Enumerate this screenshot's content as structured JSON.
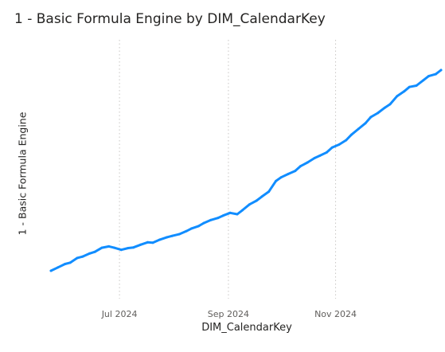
{
  "chart_data": {
    "type": "line",
    "title": "1 - Basic Formula Engine by DIM_CalendarKey",
    "xlabel": "DIM_CalendarKey",
    "ylabel": "1 - Basic Formula Engine",
    "x_ticks": [
      "Jul 2024",
      "Sep 2024",
      "Nov 2024"
    ],
    "x_start": "2024-05-23",
    "x_end": "2024-12-31",
    "grid": true,
    "series": [
      {
        "color": "#118dff",
        "points": [
          [
            "2024-05-23",
            0.0
          ],
          [
            "2024-05-27",
            1.0
          ],
          [
            "2024-05-31",
            2.0
          ],
          [
            "2024-06-03",
            2.4
          ],
          [
            "2024-06-07",
            3.8
          ],
          [
            "2024-06-10",
            4.2
          ],
          [
            "2024-06-14",
            5.1
          ],
          [
            "2024-06-17",
            5.6
          ],
          [
            "2024-06-21",
            6.8
          ],
          [
            "2024-06-25",
            7.2
          ],
          [
            "2024-06-28",
            6.8
          ],
          [
            "2024-07-02",
            6.2
          ],
          [
            "2024-07-06",
            6.7
          ],
          [
            "2024-07-09",
            6.9
          ],
          [
            "2024-07-13",
            7.7
          ],
          [
            "2024-07-17",
            8.4
          ],
          [
            "2024-07-20",
            8.3
          ],
          [
            "2024-07-24",
            9.2
          ],
          [
            "2024-07-28",
            9.9
          ],
          [
            "2024-07-31",
            10.3
          ],
          [
            "2024-08-04",
            10.8
          ],
          [
            "2024-08-08",
            11.7
          ],
          [
            "2024-08-11",
            12.5
          ],
          [
            "2024-08-15",
            13.2
          ],
          [
            "2024-08-18",
            14.1
          ],
          [
            "2024-08-22",
            15.0
          ],
          [
            "2024-08-26",
            15.6
          ],
          [
            "2024-08-29",
            16.3
          ],
          [
            "2024-09-02",
            17.1
          ],
          [
            "2024-09-06",
            16.7
          ],
          [
            "2024-09-09",
            17.9
          ],
          [
            "2024-09-13",
            19.6
          ],
          [
            "2024-09-17",
            20.7
          ],
          [
            "2024-09-20",
            21.9
          ],
          [
            "2024-09-24",
            23.4
          ],
          [
            "2024-09-28",
            26.5
          ],
          [
            "2024-10-01",
            27.6
          ],
          [
            "2024-10-05",
            28.6
          ],
          [
            "2024-10-09",
            29.5
          ],
          [
            "2024-10-12",
            30.9
          ],
          [
            "2024-10-16",
            32.0
          ],
          [
            "2024-10-20",
            33.3
          ],
          [
            "2024-10-23",
            34.0
          ],
          [
            "2024-10-27",
            35.0
          ],
          [
            "2024-10-30",
            36.4
          ],
          [
            "2024-11-03",
            37.3
          ],
          [
            "2024-11-07",
            38.6
          ],
          [
            "2024-11-10",
            40.2
          ],
          [
            "2024-11-14",
            41.9
          ],
          [
            "2024-11-18",
            43.6
          ],
          [
            "2024-11-21",
            45.4
          ],
          [
            "2024-11-25",
            46.6
          ],
          [
            "2024-11-29",
            48.2
          ],
          [
            "2024-12-02",
            49.2
          ],
          [
            "2024-12-06",
            51.6
          ],
          [
            "2024-12-10",
            53.0
          ],
          [
            "2024-12-13",
            54.3
          ],
          [
            "2024-12-17",
            54.7
          ],
          [
            "2024-12-21",
            56.3
          ],
          [
            "2024-12-24",
            57.5
          ],
          [
            "2024-12-28",
            58.1
          ],
          [
            "2024-12-31",
            59.3
          ]
        ]
      }
    ]
  }
}
